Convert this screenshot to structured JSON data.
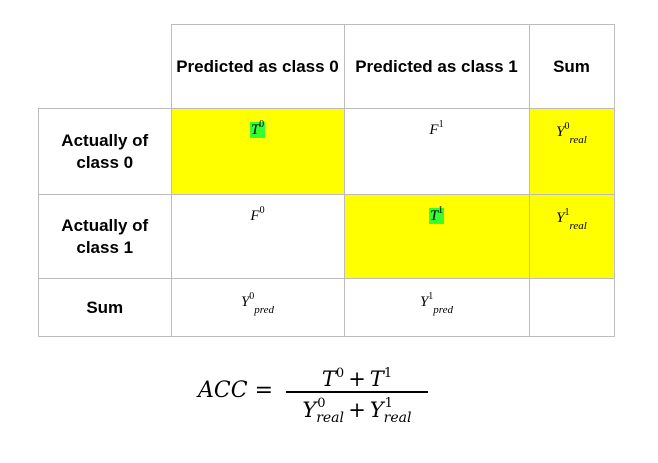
{
  "table": {
    "header": {
      "col1": "Predicted as class 0",
      "col2": "Predicted as class 1",
      "col3": "Sum"
    },
    "rows": [
      {
        "label": "Actually of class 0",
        "c1_base": "T",
        "c1_sup": "0",
        "c2_base": "F",
        "c2_sup": "1",
        "sum_base": "Y",
        "sum_sup": "0",
        "sum_sub": "real"
      },
      {
        "label": "Actually of class 1",
        "c1_base": "F",
        "c1_sup": "0",
        "c2_base": "T",
        "c2_sup": "1",
        "sum_base": "Y",
        "sum_sup": "1",
        "sum_sub": "real"
      }
    ],
    "sum_row": {
      "label": "Sum",
      "c1_base": "Y",
      "c1_sup": "0",
      "c1_sub": "pred",
      "c2_base": "Y",
      "c2_sup": "1",
      "c2_sub": "pred",
      "total": ""
    }
  },
  "formula": {
    "lhs": "ACC",
    "equals": "=",
    "num_t": "T",
    "num_sup0": "0",
    "plus": "+",
    "num_sup1": "1",
    "den_y": "Y",
    "den_sub": "real"
  },
  "colors": {
    "highlight_yellow": "#ffff00",
    "highlight_green": "#33ff33",
    "grid": "#bcbcbc"
  }
}
